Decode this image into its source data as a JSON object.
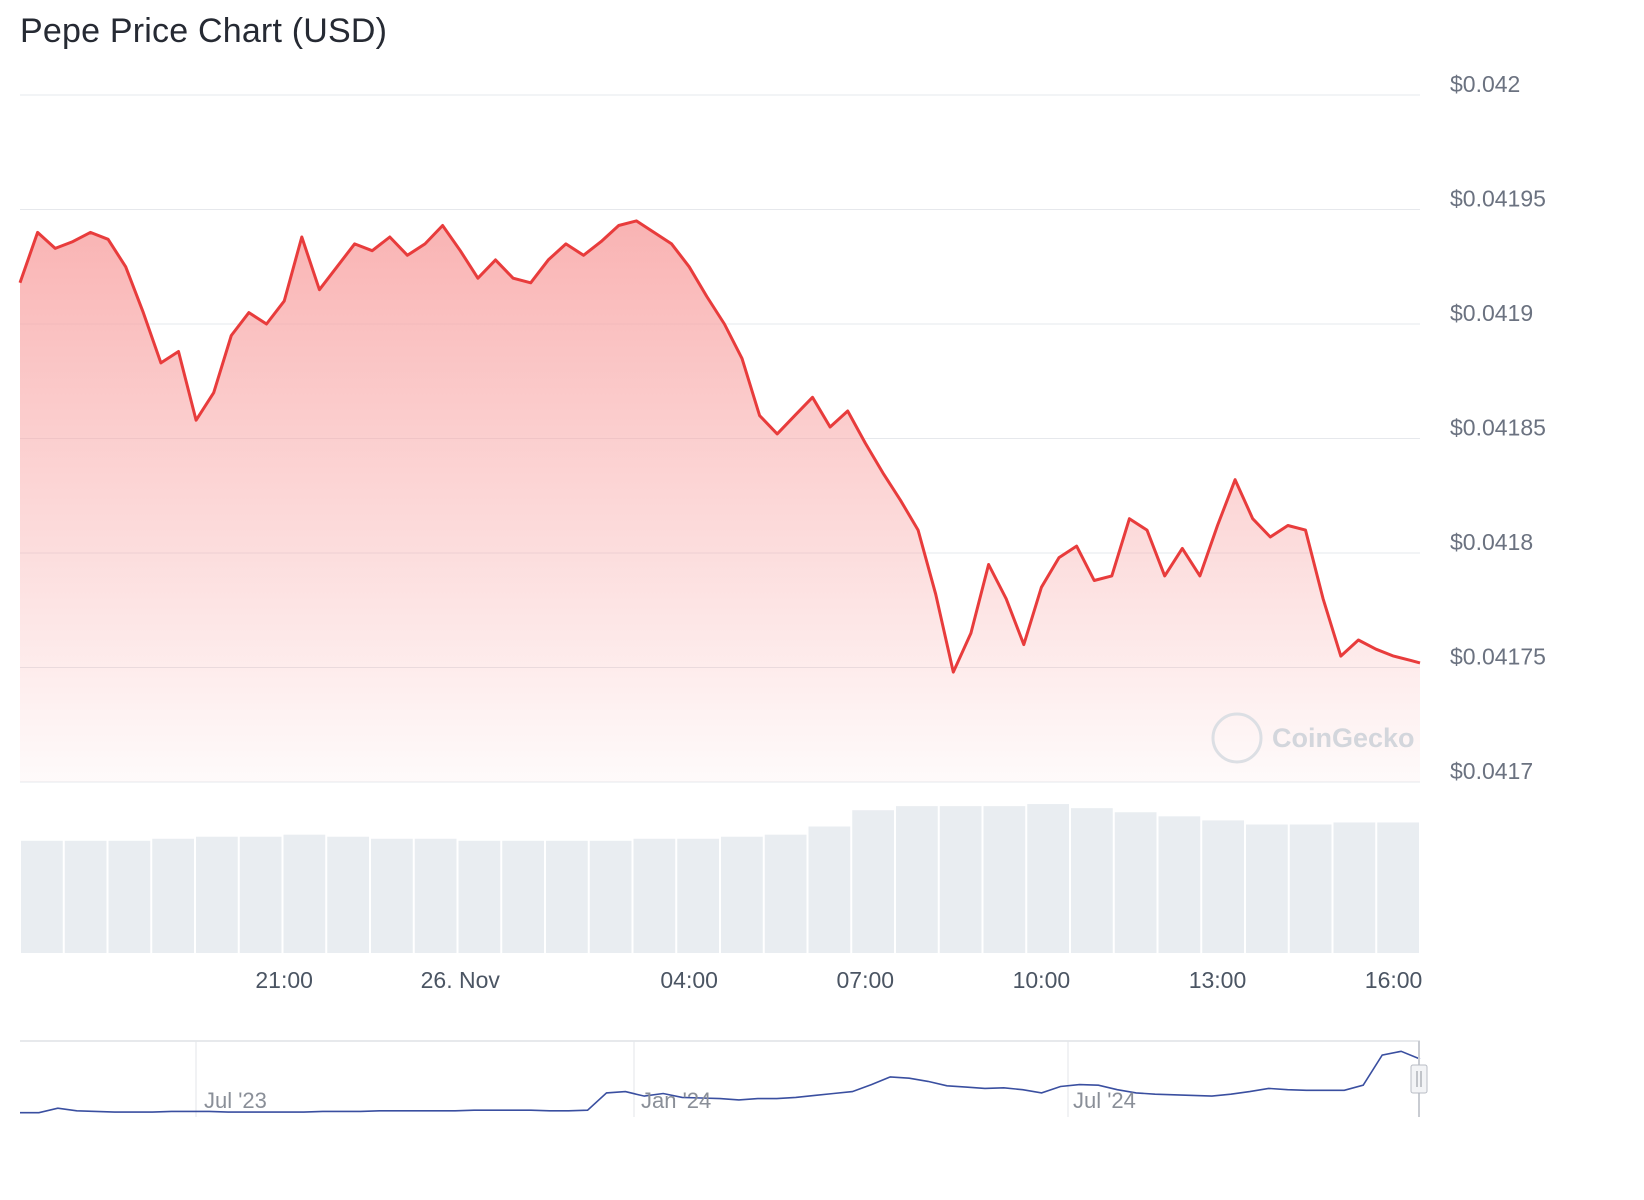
{
  "title": "Pepe Price Chart (USD)",
  "watermark": "CoinGecko",
  "colors": {
    "price_line": "#e83c3c",
    "price_fill_top": "#f8a6a6",
    "grid": "#e6e8ec",
    "volume_bar": "#e9edf1",
    "navigator_line": "#3a4fa0"
  },
  "chart_data": [
    {
      "type": "area",
      "title": "Pepe Price Chart (USD)",
      "xlabel": "",
      "ylabel": "",
      "ylim": [
        0.0417,
        0.042
      ],
      "y_ticks": [
        "$0.042",
        "$0.04195",
        "$0.0419",
        "$0.04185",
        "$0.0418",
        "$0.04175",
        "$0.0417"
      ],
      "y_tick_values": [
        0.042,
        0.04195,
        0.0419,
        0.04185,
        0.0418,
        0.04175,
        0.0417
      ],
      "x_ticks": [
        {
          "label": "21:00",
          "t": 3
        },
        {
          "label": "26. Nov",
          "t": 5
        },
        {
          "label": "04:00",
          "t": 7.6
        },
        {
          "label": "07:00",
          "t": 9.6
        },
        {
          "label": "10:00",
          "t": 11.6
        },
        {
          "label": "13:00",
          "t": 13.6
        },
        {
          "label": "16:00",
          "t": 15.6
        }
      ],
      "x_range_hours": [
        0,
        15.9
      ],
      "grid": true,
      "series": [
        {
          "t": [
            0,
            0.2,
            0.4,
            0.6,
            0.8,
            1.0,
            1.2,
            1.4,
            1.6,
            1.8,
            2.0,
            2.2,
            2.4,
            2.6,
            2.8,
            3.0,
            3.2,
            3.4,
            3.6,
            3.8,
            4.0,
            4.2,
            4.4,
            4.6,
            4.8,
            5.0,
            5.2,
            5.4,
            5.6,
            5.8,
            6.0,
            6.2,
            6.4,
            6.6,
            6.8,
            7.0,
            7.2,
            7.4,
            7.6,
            7.8,
            8.0,
            8.2,
            8.4,
            8.6,
            8.8,
            9.0,
            9.2,
            9.4,
            9.6,
            9.8,
            10.0,
            10.2,
            10.4,
            10.6,
            10.8,
            11.0,
            11.2,
            11.4,
            11.6,
            11.8,
            12.0,
            12.2,
            12.4,
            12.6,
            12.8,
            13.0,
            13.2,
            13.4,
            13.6,
            13.8,
            14.0,
            14.2,
            14.4,
            14.6,
            14.8,
            15.0,
            15.2,
            15.4,
            15.6,
            15.8,
            15.9
          ],
          "values": [
            0.041918,
            0.04194,
            0.041933,
            0.041936,
            0.04194,
            0.041937,
            0.041925,
            0.041905,
            0.041883,
            0.041888,
            0.041858,
            0.04187,
            0.041895,
            0.041905,
            0.0419,
            0.04191,
            0.041938,
            0.041915,
            0.041925,
            0.041935,
            0.041932,
            0.041938,
            0.04193,
            0.041935,
            0.041943,
            0.041932,
            0.04192,
            0.041928,
            0.04192,
            0.041918,
            0.041928,
            0.041935,
            0.04193,
            0.041936,
            0.041943,
            0.041945,
            0.04194,
            0.041935,
            0.041925,
            0.041912,
            0.0419,
            0.041885,
            0.04186,
            0.041852,
            0.04186,
            0.041868,
            0.041855,
            0.041862,
            0.041848,
            0.041835,
            0.041823,
            0.04181,
            0.041782,
            0.041748,
            0.041765,
            0.041795,
            0.04178,
            0.04176,
            0.041785,
            0.041798,
            0.041803,
            0.041788,
            0.04179,
            0.041815,
            0.04181,
            0.04179,
            0.041802,
            0.04179,
            0.041812,
            0.041832,
            0.041815,
            0.041807,
            0.041812,
            0.04181,
            0.04178,
            0.041755,
            0.041762,
            0.041758,
            0.041755,
            0.041753,
            0.041752
          ]
        }
      ]
    },
    {
      "type": "bar",
      "title": "",
      "note_values": "trading volume, relative (unlabeled axis)",
      "values": [
        0.55,
        0.55,
        0.55,
        0.56,
        0.57,
        0.57,
        0.58,
        0.57,
        0.56,
        0.56,
        0.55,
        0.55,
        0.55,
        0.55,
        0.56,
        0.56,
        0.57,
        0.58,
        0.62,
        0.7,
        0.72,
        0.72,
        0.72,
        0.73,
        0.71,
        0.69,
        0.67,
        0.65,
        0.63,
        0.63,
        0.64,
        0.64
      ]
    },
    {
      "type": "line",
      "title": "",
      "x_ticks": [
        "Jul '23",
        "Jan '24",
        "Jul '24"
      ],
      "values": [
        0.02,
        0.02,
        0.09,
        0.05,
        0.04,
        0.03,
        0.03,
        0.03,
        0.04,
        0.04,
        0.04,
        0.03,
        0.03,
        0.03,
        0.03,
        0.03,
        0.04,
        0.04,
        0.04,
        0.05,
        0.05,
        0.05,
        0.05,
        0.05,
        0.06,
        0.06,
        0.06,
        0.06,
        0.05,
        0.05,
        0.06,
        0.33,
        0.35,
        0.28,
        0.32,
        0.26,
        0.25,
        0.24,
        0.22,
        0.24,
        0.24,
        0.26,
        0.29,
        0.32,
        0.35,
        0.46,
        0.58,
        0.56,
        0.51,
        0.44,
        0.42,
        0.4,
        0.41,
        0.38,
        0.33,
        0.43,
        0.46,
        0.45,
        0.38,
        0.33,
        0.31,
        0.3,
        0.29,
        0.28,
        0.31,
        0.35,
        0.4,
        0.38,
        0.37,
        0.37,
        0.37,
        0.45,
        0.92,
        0.98,
        0.86
      ]
    }
  ]
}
